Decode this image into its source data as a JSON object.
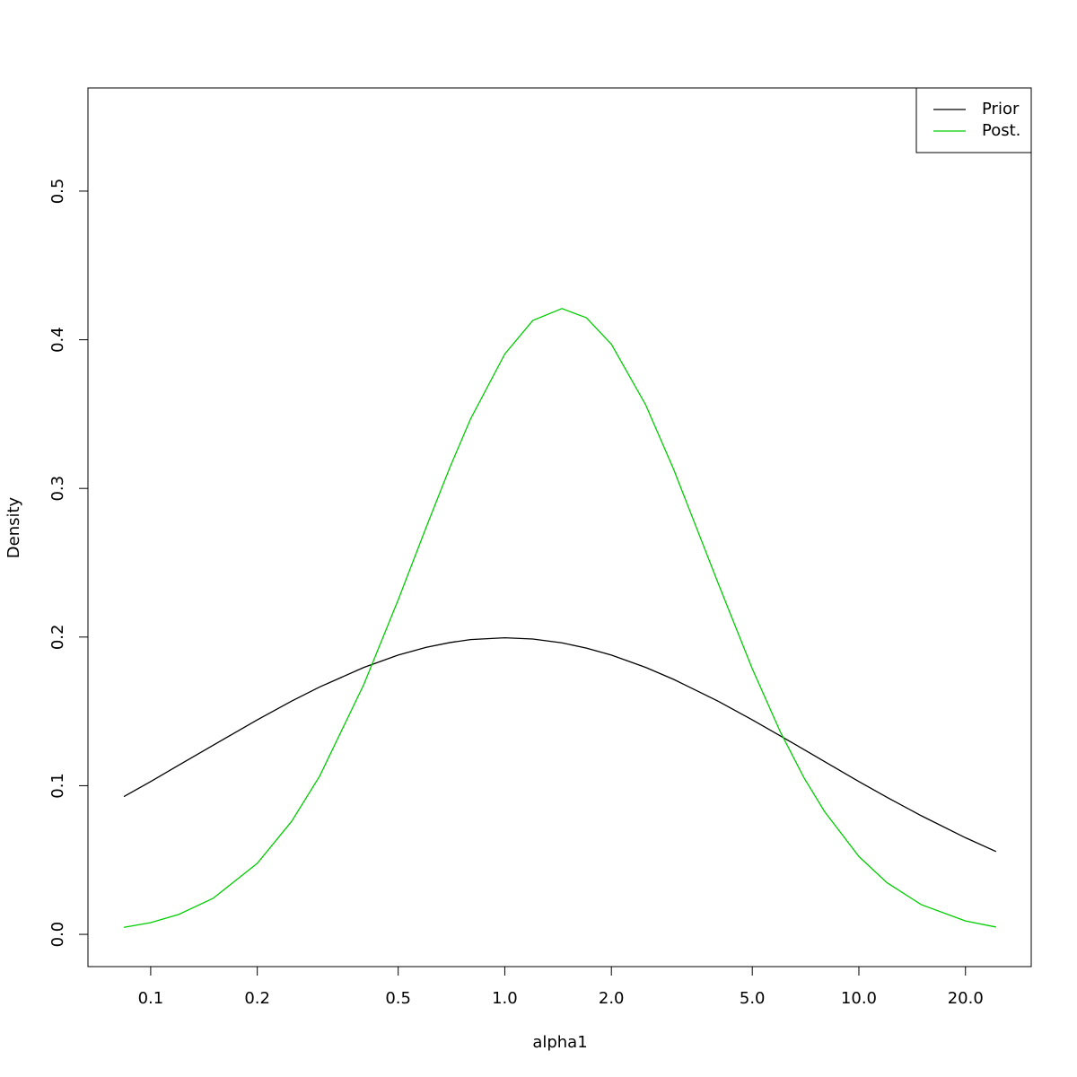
{
  "chart_data": {
    "type": "line",
    "x_label": "alpha1",
    "y_label": "Density",
    "xscale": "log",
    "x": [
      0.084,
      0.1,
      0.12,
      0.15,
      0.2,
      0.25,
      0.3,
      0.4,
      0.5,
      0.6,
      0.7,
      0.8,
      1.0,
      1.2,
      1.45,
      1.7,
      2.0,
      2.5,
      3,
      4,
      5,
      6,
      7,
      8,
      10,
      12,
      15,
      20,
      24.4
    ],
    "series": [
      {
        "name": "Prior",
        "color": "#000000",
        "values": [
          0.0927,
          0.1028,
          0.1138,
          0.1272,
          0.1443,
          0.1569,
          0.1664,
          0.1796,
          0.1879,
          0.1931,
          0.1963,
          0.1983,
          0.1995,
          0.1987,
          0.1961,
          0.1926,
          0.1879,
          0.1796,
          0.1715,
          0.1569,
          0.1443,
          0.1335,
          0.1243,
          0.1162,
          0.1028,
          0.0922,
          0.0798,
          0.065,
          0.0557
        ]
      },
      {
        "name": "Post.",
        "color": "#00cd00",
        "values": [
          0.0047,
          0.0079,
          0.0134,
          0.0242,
          0.0478,
          0.076,
          0.1064,
          0.1682,
          0.225,
          0.2739,
          0.3142,
          0.3466,
          0.3904,
          0.413,
          0.421,
          0.4148,
          0.397,
          0.3562,
          0.3127,
          0.2365,
          0.1787,
          0.1362,
          0.1053,
          0.0826,
          0.0524,
          0.0348,
          0.02,
          0.009,
          0.0049
        ]
      }
    ],
    "xlim": [
      0.0665,
      30.67
    ],
    "ylim": [
      -0.0217,
      0.5694
    ],
    "xticks": [
      {
        "value": 0.1,
        "label": "0.1"
      },
      {
        "value": 0.2,
        "label": "0.2"
      },
      {
        "value": 0.5,
        "label": "0.5"
      },
      {
        "value": 1,
        "label": "1.0"
      },
      {
        "value": 2,
        "label": "2.0"
      },
      {
        "value": 5,
        "label": "5.0"
      },
      {
        "value": 10,
        "label": "10.0"
      },
      {
        "value": 20,
        "label": "20.0"
      }
    ],
    "yticks": [
      {
        "value": 0,
        "label": "0.0"
      },
      0.1,
      0.2,
      0.3,
      0.4,
      0.5
    ],
    "legend": "top-right"
  }
}
